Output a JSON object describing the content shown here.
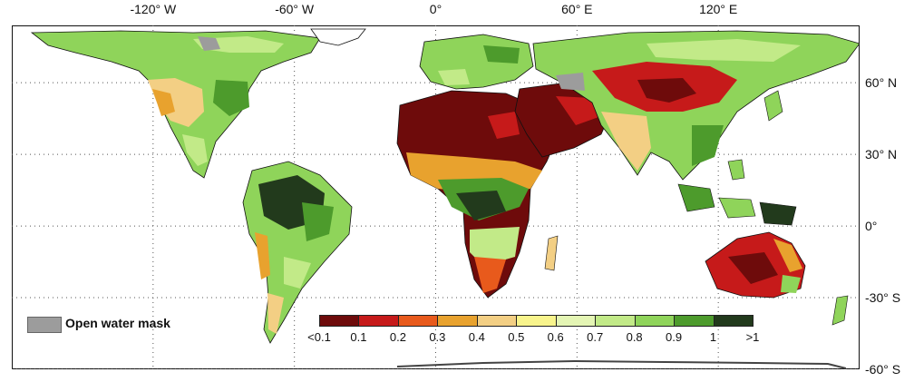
{
  "axes": {
    "lon_ticks": [
      {
        "lon": -120,
        "label": "-120° W"
      },
      {
        "lon": -60,
        "label": "-60° W"
      },
      {
        "lon": 0,
        "label": "0°"
      },
      {
        "lon": 60,
        "label": "60° E"
      },
      {
        "lon": 120,
        "label": "120° E"
      }
    ],
    "lat_ticks": [
      {
        "lat": 60,
        "label": "60° N"
      },
      {
        "lat": 30,
        "label": "30° N"
      },
      {
        "lat": 0,
        "label": "0°"
      },
      {
        "lat": -30,
        "label": "-30° S"
      },
      {
        "lat": -60,
        "label": "-60° S"
      }
    ],
    "lon_range": [
      -180,
      180
    ],
    "lat_range": [
      -60,
      84
    ],
    "grid": "dotted"
  },
  "mask_legend": {
    "label": "Open water mask",
    "color": "#9c9c9c"
  },
  "colorbar": {
    "labels": [
      "<0.1",
      "0.1",
      "0.2",
      "0.3",
      "0.4",
      "0.5",
      "0.6",
      "0.7",
      "0.8",
      "0.9",
      "1",
      ">1"
    ],
    "colors": [
      "#6e0b0b",
      "#c61a1a",
      "#e85a1c",
      "#e8a22e",
      "#f3cf84",
      "#f8f48c",
      "#e4f5b4",
      "#c2ea88",
      "#8fd45a",
      "#4d9b2c",
      "#223a1c"
    ]
  }
}
